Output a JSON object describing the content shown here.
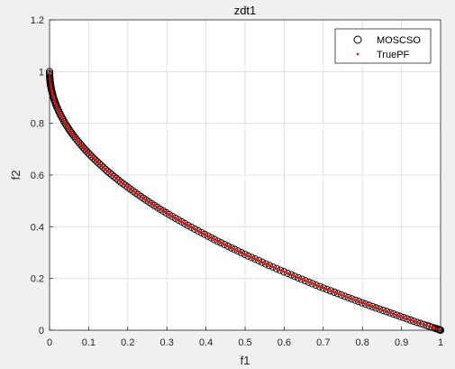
{
  "chart_data": {
    "type": "scatter",
    "title": "zdt1",
    "xlabel": "f1",
    "ylabel": "f2",
    "xlim": [
      0,
      1
    ],
    "ylim": [
      0,
      1.2
    ],
    "xticks": [
      "0",
      "0.1",
      "0.2",
      "0.3",
      "0.4",
      "0.5",
      "0.6",
      "0.7",
      "0.8",
      "0.9",
      "1"
    ],
    "yticks": [
      "0",
      "0.2",
      "0.4",
      "0.6",
      "0.8",
      "1",
      "1.2"
    ],
    "grid": true,
    "legend_position": "top-right",
    "series": [
      {
        "name": "MOSCSO",
        "marker": "circle-open",
        "color": "#000000",
        "x": [
          0.0,
          0.0005,
          0.001,
          0.002,
          0.003,
          0.005,
          0.007,
          0.01,
          0.014,
          0.018,
          0.023,
          0.03,
          0.038,
          0.047,
          0.056,
          0.066,
          0.078,
          0.09,
          0.103,
          0.117,
          0.132,
          0.148,
          0.165,
          0.182,
          0.2,
          0.22,
          0.24,
          0.261,
          0.283,
          0.306,
          0.33,
          0.354,
          0.38,
          0.405,
          0.43,
          0.456,
          0.482,
          0.508,
          0.535,
          0.562,
          0.59,
          0.618,
          0.645,
          0.672,
          0.7,
          0.728,
          0.755,
          0.782,
          0.808,
          0.835,
          0.862,
          0.888,
          0.914,
          0.94,
          0.965,
          0.985,
          0.995,
          1.0
        ],
        "y": [
          1.0,
          0.978,
          0.968,
          0.955,
          0.945,
          0.929,
          0.916,
          0.9,
          0.882,
          0.866,
          0.848,
          0.827,
          0.805,
          0.783,
          0.763,
          0.743,
          0.721,
          0.7,
          0.679,
          0.658,
          0.637,
          0.615,
          0.594,
          0.573,
          0.553,
          0.531,
          0.51,
          0.489,
          0.468,
          0.447,
          0.426,
          0.405,
          0.384,
          0.364,
          0.344,
          0.325,
          0.306,
          0.287,
          0.269,
          0.25,
          0.232,
          0.214,
          0.197,
          0.18,
          0.163,
          0.147,
          0.131,
          0.116,
          0.101,
          0.086,
          0.072,
          0.058,
          0.044,
          0.03,
          0.018,
          0.008,
          0.003,
          0.0
        ]
      },
      {
        "name": "TruePF",
        "marker": "dot",
        "color": "#ff0000",
        "function": "f2 = 1 - sqrt(f1)",
        "x_range": [
          0,
          1
        ]
      }
    ]
  }
}
